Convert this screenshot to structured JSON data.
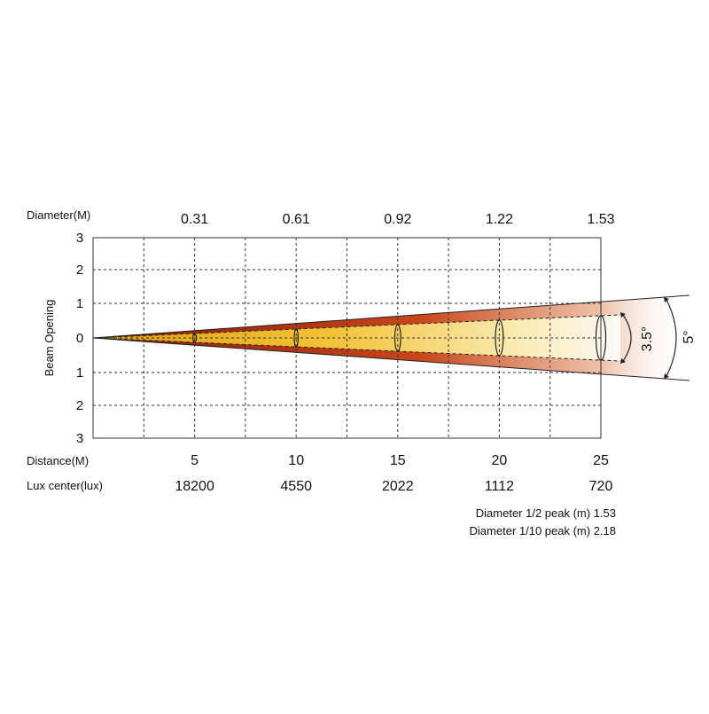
{
  "chart_data": {
    "type": "beam-angle",
    "diameter_label": "Diameter(M)",
    "diameters": [
      "0.31",
      "0.61",
      "0.92",
      "1.22",
      "1.53"
    ],
    "y_axis_label": "Beam Opening",
    "y_ticks": [
      "3",
      "2",
      "1",
      "0",
      "1",
      "2",
      "3"
    ],
    "ylim": [
      -3,
      3
    ],
    "distance_label": "Distance(M)",
    "distances": [
      5,
      10,
      15,
      20,
      25
    ],
    "distance_labels": [
      "5",
      "10",
      "15",
      "20",
      "25"
    ],
    "xlim": [
      0,
      25
    ],
    "lux_label": "Lux center(lux)",
    "lux_values": [
      "18200",
      "4550",
      "2022",
      "1112",
      "720"
    ],
    "beam_angle_label": "3.5°",
    "field_angle_label": "5°",
    "beam_angle_deg": 3.5,
    "field_angle_deg": 5,
    "note_half_peak": "Diameter 1/2 peak (m) 1.53",
    "note_tenth_peak": "Diameter 1/10 peak (m) 2.18",
    "grid": true,
    "colors": {
      "beam_edge": "#b8240a",
      "beam_mid": "#e07a18",
      "beam_core": "#f0c030",
      "grid": "#333333"
    }
  }
}
